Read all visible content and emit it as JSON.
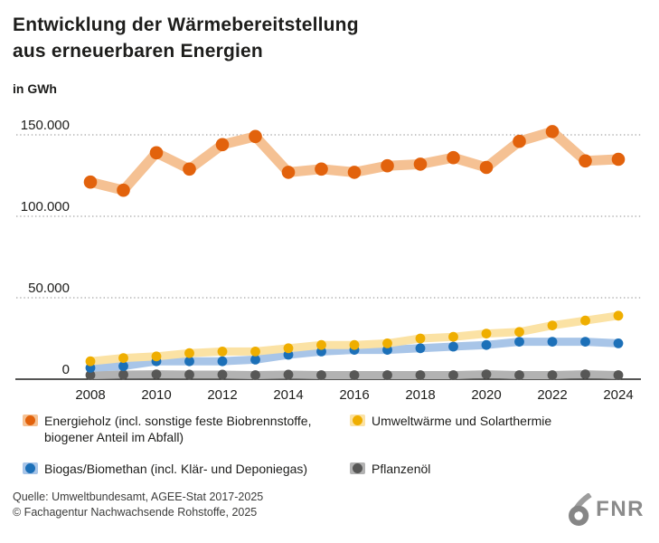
{
  "header": {
    "title_line1": "Entwicklung der Wärmebereitstellung",
    "title_line2": "aus erneuerbaren Energien",
    "unit_label": "in GWh"
  },
  "chart_data": {
    "type": "line",
    "title": "Entwicklung der Wärmebereitstellung aus erneuerbaren Energien",
    "xlabel": "",
    "ylabel": "in GWh",
    "grid": "horizontal-dotted",
    "legend_position": "bottom",
    "ylim": [
      0,
      165000
    ],
    "x": [
      2008,
      2009,
      2010,
      2011,
      2012,
      2013,
      2014,
      2015,
      2016,
      2017,
      2018,
      2019,
      2020,
      2021,
      2022,
      2023,
      2024
    ],
    "x_tick_labels": [
      "2008",
      "2010",
      "2012",
      "2014",
      "2016",
      "2018",
      "2020",
      "2022",
      "2024"
    ],
    "y_ticks": [
      {
        "value": 150000,
        "label": "150.000"
      },
      {
        "value": 100000,
        "label": "100.000"
      },
      {
        "value": 50000,
        "label": "50.000"
      },
      {
        "value": 0,
        "label": "0"
      }
    ],
    "series": [
      {
        "id": "energieholz",
        "name": "Energieholz (incl. sonstige feste Biobrennstoffe, biogener Anteil im Abfall)",
        "marker_color": "#e2620c",
        "band_color": "#f5c193",
        "values": [
          121000,
          116000,
          139000,
          129000,
          144000,
          149000,
          127000,
          129000,
          127000,
          131000,
          132000,
          136000,
          130000,
          146000,
          152000,
          134000,
          135000
        ]
      },
      {
        "id": "umweltwaerme-solarthermie",
        "name": "Umweltwärme und Solarthermie",
        "marker_color": "#efae00",
        "band_color": "#fbe2a4",
        "values": [
          11000,
          13000,
          14000,
          16000,
          17000,
          17000,
          19000,
          21000,
          21000,
          22000,
          25000,
          26000,
          28000,
          29000,
          33000,
          36000,
          39000
        ]
      },
      {
        "id": "biogas-biomethan",
        "name": "Biogas/Biomethan (incl. Klär- und Deponiegas)",
        "marker_color": "#1c70b8",
        "band_color": "#a8c5e8",
        "values": [
          7000,
          8000,
          11000,
          11000,
          11000,
          12000,
          15000,
          17000,
          18000,
          18000,
          19000,
          20000,
          21000,
          23000,
          23000,
          23000,
          22000
        ]
      },
      {
        "id": "pflanzenoel",
        "name": "Pflanzenöl",
        "marker_color": "#575756",
        "band_color": "#b2b2b2",
        "values": [
          2500,
          2800,
          3000,
          2800,
          2800,
          2500,
          2800,
          2500,
          2500,
          2500,
          2500,
          2500,
          3000,
          2500,
          2500,
          3000,
          2500
        ]
      }
    ]
  },
  "footer": {
    "source": "Quelle: Umweltbundesamt, AGEE-Stat 2017-2025",
    "copyright": "© Fachagentur Nachwachsende Rohstoffe, 2025",
    "logo_text": "FNR"
  }
}
